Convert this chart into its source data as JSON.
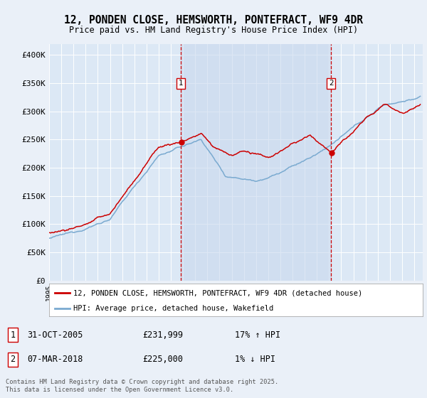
{
  "title": "12, PONDEN CLOSE, HEMSWORTH, PONTEFRACT, WF9 4DR",
  "subtitle": "Price paid vs. HM Land Registry's House Price Index (HPI)",
  "background_color": "#eaf0f8",
  "plot_bg_color": "#dce8f5",
  "shade_color": "#c8d8ee",
  "red_color": "#cc0000",
  "blue_color": "#7aaad0",
  "marker1_date_x": 2005.83,
  "marker2_date_x": 2018.18,
  "legend1": "12, PONDEN CLOSE, HEMSWORTH, PONTEFRACT, WF9 4DR (detached house)",
  "legend2": "HPI: Average price, detached house, Wakefield",
  "footer": "Contains HM Land Registry data © Crown copyright and database right 2025.\nThis data is licensed under the Open Government Licence v3.0.",
  "ylim": [
    0,
    420000
  ],
  "yticks": [
    0,
    50000,
    100000,
    150000,
    200000,
    250000,
    300000,
    350000,
    400000
  ],
  "ytick_labels": [
    "£0",
    "£50K",
    "£100K",
    "£150K",
    "£200K",
    "£250K",
    "£300K",
    "£350K",
    "£400K"
  ],
  "xlim_start": 1995.0,
  "xlim_end": 2025.7
}
